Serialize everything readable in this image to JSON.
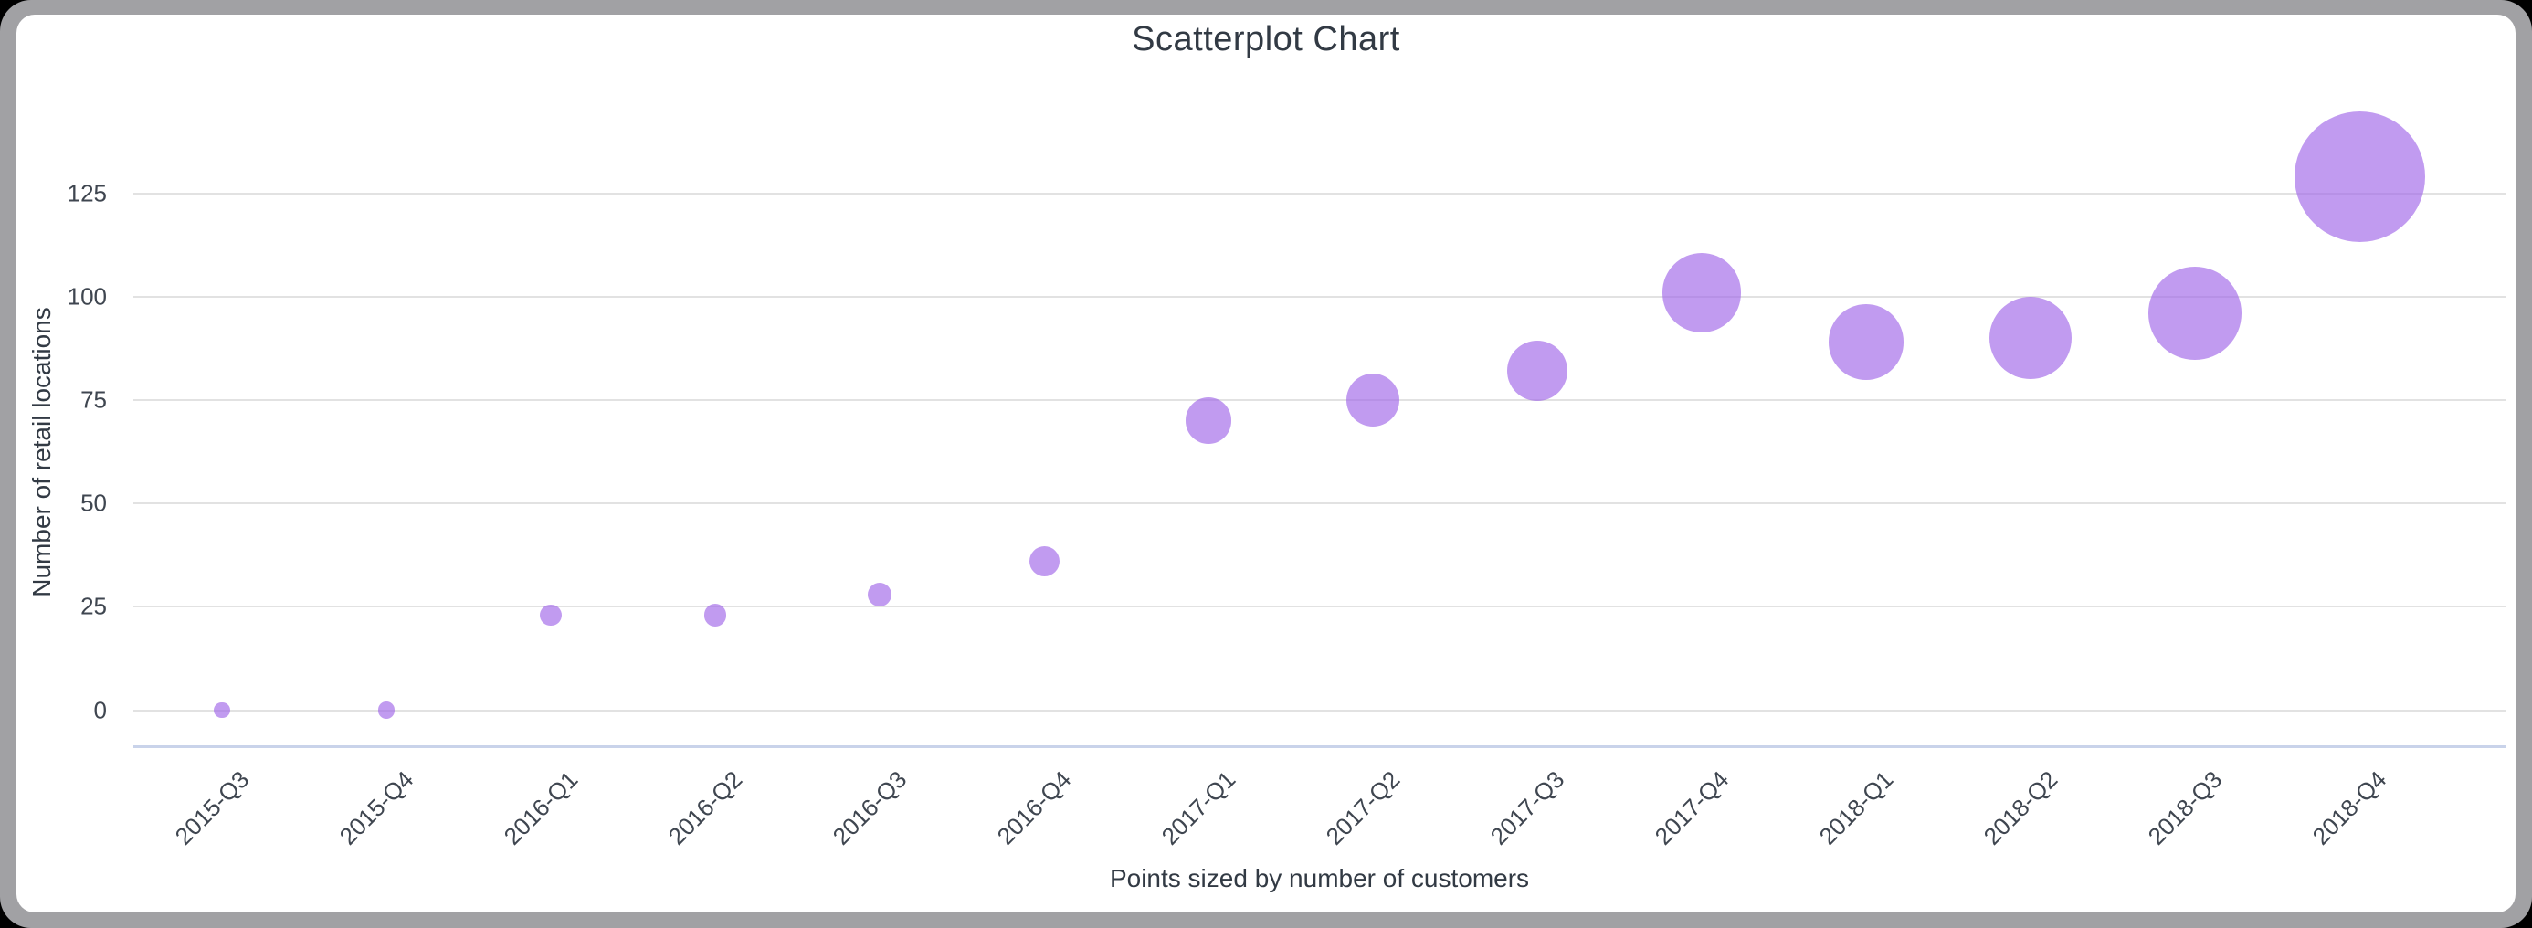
{
  "window": {
    "frame_color": "#a1a1a4",
    "canvas_color": "#ffffff",
    "page_background": "#000000"
  },
  "chart_data": {
    "type": "scatter",
    "title": "Scatterplot Chart",
    "xlabel": "Points sized by number of customers",
    "ylabel": "Number of retail locations",
    "categories": [
      "2015-Q3",
      "2015-Q4",
      "2016-Q1",
      "2016-Q2",
      "2016-Q3",
      "2016-Q4",
      "2017-Q1",
      "2017-Q2",
      "2017-Q3",
      "2017-Q4",
      "2018-Q1",
      "2018-Q2",
      "2018-Q3",
      "2018-Q4"
    ],
    "series": [
      {
        "name": "Number of retail locations",
        "values": [
          0,
          0,
          23,
          23,
          28,
          36,
          70,
          75,
          82,
          101,
          89,
          90,
          96,
          129
        ],
        "point_radius_px": [
          8.7,
          9.3,
          11.8,
          12.2,
          13,
          16.5,
          25.3,
          29,
          33,
          43.3,
          41.3,
          45.3,
          50.8,
          71.5
        ]
      }
    ],
    "size_encoding": "points sized by number of customers (no numeric size labels shown)",
    "yticks": [
      0,
      25,
      50,
      75,
      100,
      125
    ],
    "ylim": [
      0,
      137
    ],
    "grid": true,
    "legend_position": "none",
    "xtick_rotation_deg": -45,
    "point_fill": "rgba(161,103,232,0.66)",
    "gridline_color": "#e2e2e2",
    "axis_line_color": "#c9d3ea",
    "title_color": "#323a44",
    "tick_color": "#3f4650"
  }
}
